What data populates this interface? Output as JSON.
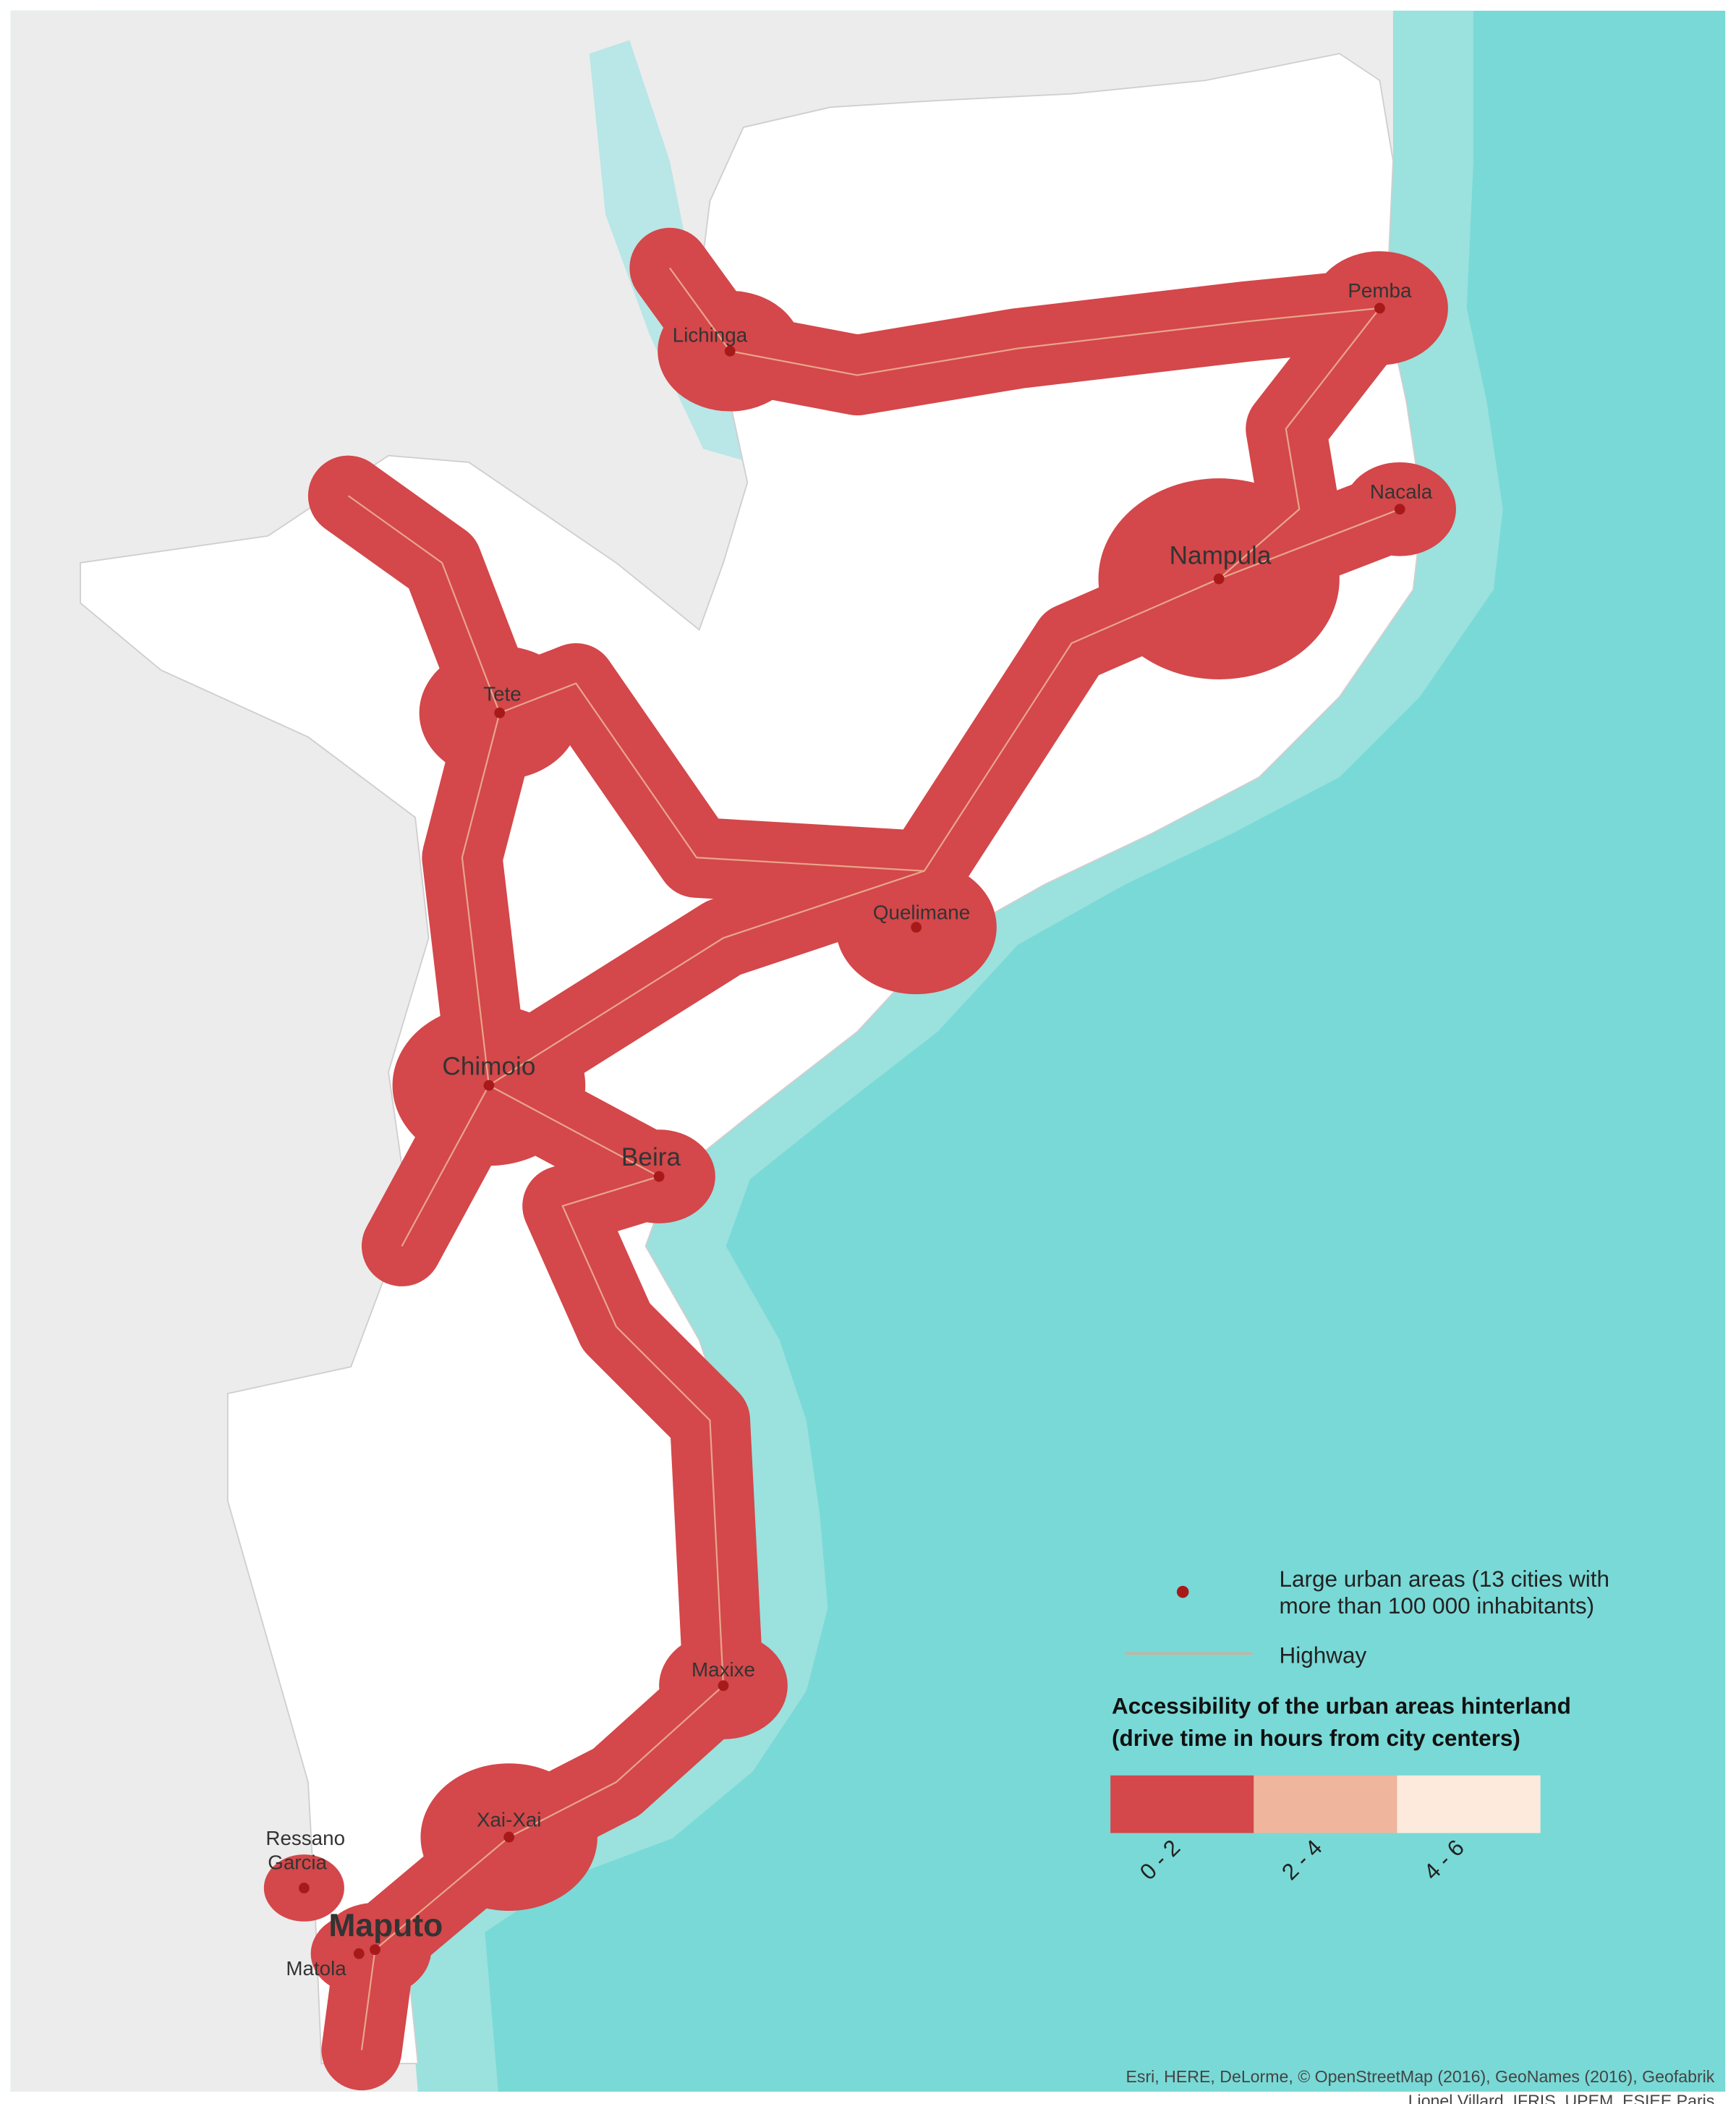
{
  "cities": [
    {
      "name": "Lichinga"
    },
    {
      "name": "Pemba"
    },
    {
      "name": "Nacala"
    },
    {
      "name": "Nampula"
    },
    {
      "name": "Tete"
    },
    {
      "name": "Quelimane"
    },
    {
      "name": "Chimoio"
    },
    {
      "name": "Beira"
    },
    {
      "name": "Maxixe"
    },
    {
      "name": "Xai-Xai"
    },
    {
      "name_lines": [
        "Ressano",
        "Garcia"
      ]
    },
    {
      "name": "Maputo"
    },
    {
      "name": "Matola"
    }
  ],
  "legend": {
    "city_lines": [
      "Large urban areas (13 cities with",
      "more than 100 000 inhabitants)"
    ],
    "highway": "Highway",
    "title_lines": [
      "Accessibility of the urban areas hinterland",
      "(drive time in hours from city centers)"
    ],
    "classes": [
      {
        "label": "0 - 2",
        "color": "#d4474a"
      },
      {
        "label": "2 - 4",
        "color": "#efb69d"
      },
      {
        "label": "4 - 6",
        "color": "#fdeadd"
      }
    ]
  },
  "attribution": [
    "Esri, HERE, DeLorme, © OpenStreetMap (2016), GeoNames (2016), Geofabrik",
    "Lionel Villard, IFRIS, UPEM, ESIEE Paris"
  ]
}
